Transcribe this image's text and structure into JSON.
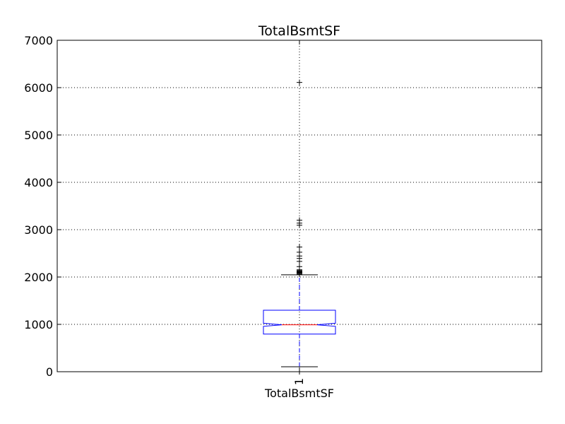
{
  "chart_data": {
    "type": "boxplot",
    "title": "TotalBsmtSF",
    "xlabel": "TotalBsmtSF",
    "ylabel": "",
    "ylim": [
      0,
      7000
    ],
    "yticks": [
      0,
      1000,
      2000,
      3000,
      4000,
      5000,
      6000,
      7000
    ],
    "ytick_labels": [
      "0",
      "1000",
      "2000",
      "3000",
      "4000",
      "5000",
      "6000",
      "7000"
    ],
    "grid": true,
    "notched": true,
    "boxes": [
      {
        "position_label": "1",
        "whisker_low": 105,
        "q1": 795,
        "median": 991,
        "q3": 1298,
        "whisker_high": 2046,
        "notch_low": 958,
        "notch_high": 1024,
        "fliers": [
          0,
          0,
          0,
          2060,
          2078,
          2090,
          2100,
          2110,
          2121,
          2136,
          2153,
          2220,
          2330,
          2392,
          2444,
          2524,
          2633,
          3094,
          3138,
          3200,
          6110
        ]
      }
    ],
    "colors": {
      "box": "#0000ff",
      "median": "#ff0000",
      "whisker": "#0000ff",
      "cap": "#000000",
      "flier": "#000000",
      "grid": "#000000"
    }
  }
}
